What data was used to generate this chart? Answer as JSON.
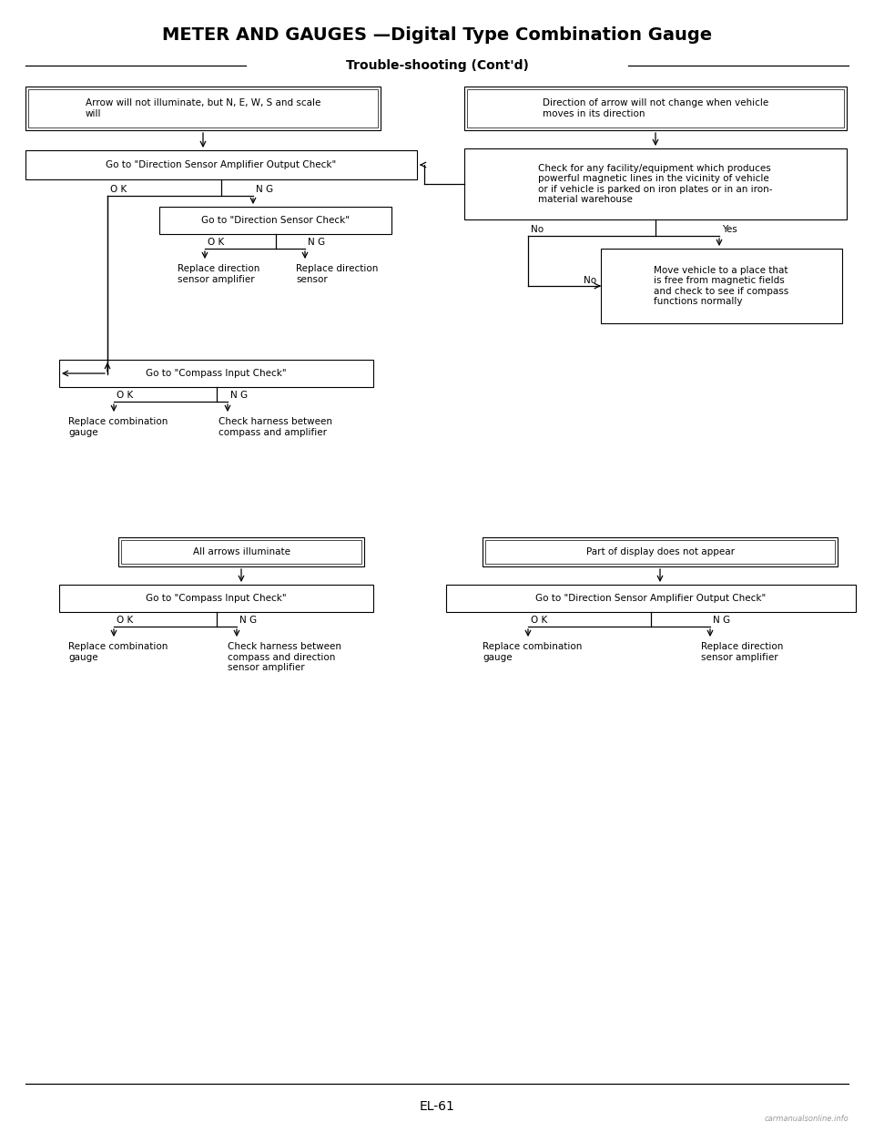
{
  "title": "METER AND GAUGES —Digital Type Combination Gauge",
  "subtitle": "Trouble-shooting (Cont'd)",
  "page_number": "EL-61",
  "fig_w": 9.6,
  "fig_h": 12.43,
  "dpi": 100
}
